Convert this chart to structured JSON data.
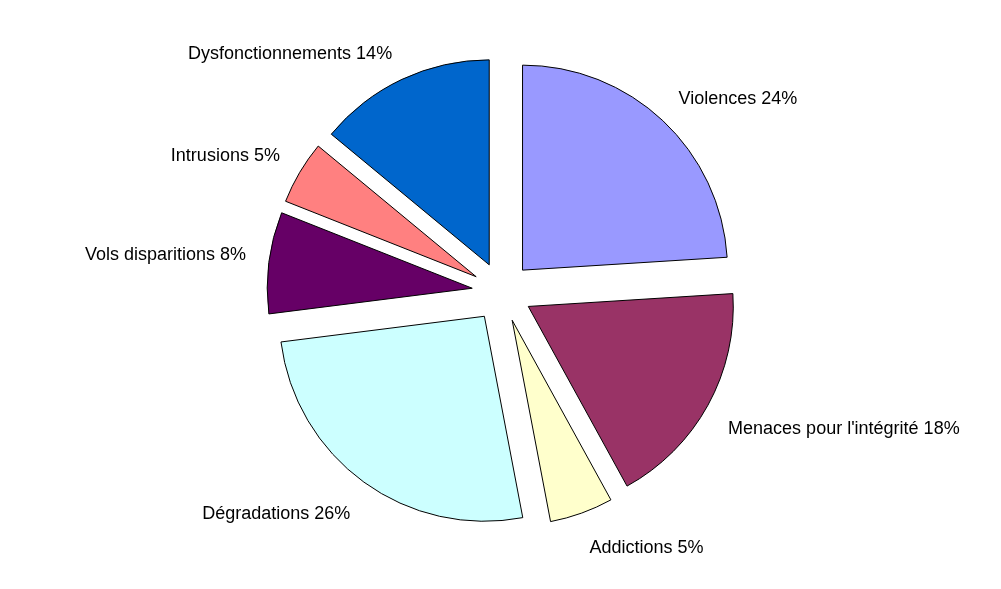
{
  "chart_data": {
    "type": "pie",
    "categories": [
      "Violences",
      "Menaces pour l'intégrité",
      "Addictions",
      "Dégradations",
      "Vols disparitions",
      "Intrusions",
      "Dysfonctionnements"
    ],
    "values": [
      24,
      18,
      5,
      26,
      8,
      5,
      14
    ],
    "value_labels": [
      "24%",
      "18%",
      "5%",
      "26%",
      "8%",
      "5%",
      "14%"
    ],
    "colors": [
      "#9999ff",
      "#993366",
      "#ffffcc",
      "#ccffff",
      "#660066",
      "#ff8080",
      "#0066cc"
    ]
  }
}
